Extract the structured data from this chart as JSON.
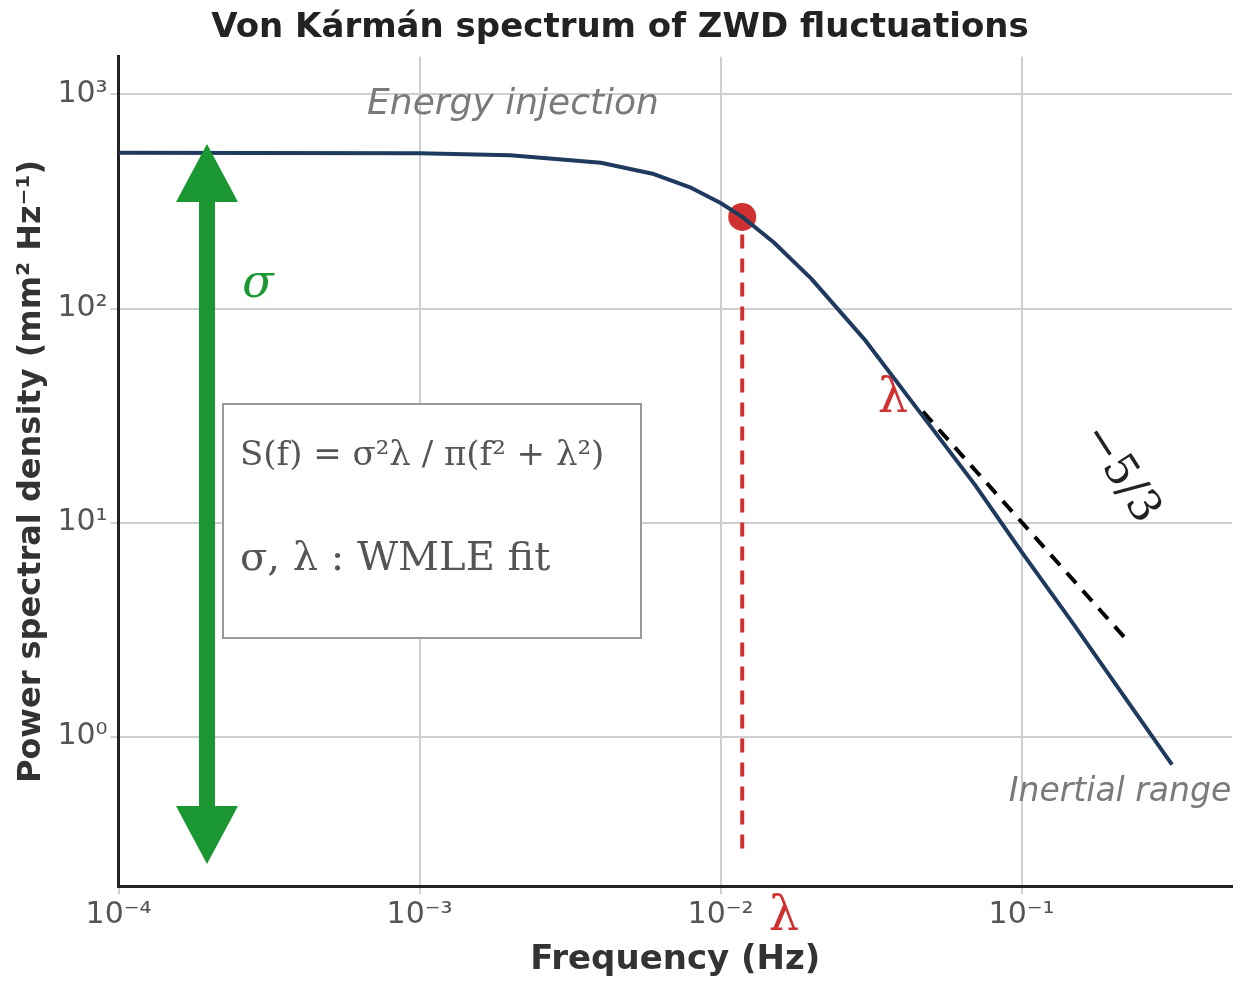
{
  "chart_data": {
    "type": "line",
    "title": "Von Kármán spectrum of ZWD fluctuations",
    "xlabel": "Frequency (Hz)",
    "ylabel": "Power spectral density (mm² Hz⁻¹)",
    "log": "xy",
    "grid": true,
    "legend": false,
    "xlim": [
      0.0001,
      0.5
    ],
    "xticks": [
      {
        "value": 0.0001,
        "label": "10⁻⁴"
      },
      {
        "value": 0.001,
        "label": "10⁻³"
      },
      {
        "value": 0.01,
        "label": "10⁻²"
      },
      {
        "value": 0.1,
        "label": "10⁻¹"
      }
    ],
    "ylim": [
      0.2,
      1500
    ],
    "yticks": [
      {
        "value": 1,
        "label": "10⁰"
      },
      {
        "value": 10,
        "label": "10¹"
      },
      {
        "value": 100,
        "label": "10²"
      },
      {
        "value": 1000,
        "label": "10³"
      }
    ],
    "series": [
      {
        "type": "line",
        "color": "#1f3a5f",
        "marker": "none",
        "line_style": "solid",
        "x": [
          0.0001,
          0.001,
          0.002,
          0.004,
          0.006,
          0.008,
          0.01,
          0.0118,
          0.015,
          0.02,
          0.03,
          0.05,
          0.07,
          0.1,
          0.15,
          0.2,
          0.316
        ],
        "values": [
          535,
          531,
          520,
          480,
          425,
          366,
          311,
          268,
          204,
          138,
          72,
          28,
          15,
          7.3,
          3.3,
          1.85,
          0.74
        ]
      },
      {
        "type": "line",
        "color": "#000000",
        "marker": "none",
        "line_style": "dashed",
        "x": [
          0.047,
          0.22
        ],
        "values": [
          33,
          2.9
        ]
      },
      {
        "type": "line",
        "color": "#d03030",
        "marker": "none",
        "line_style": "dashed",
        "x": [
          0.0118,
          0.0118
        ],
        "values": [
          0.3,
          268
        ]
      },
      {
        "type": "scatter",
        "color": "#d03030",
        "marker": "circle",
        "x": [
          0.0118
        ],
        "values": [
          268
        ]
      }
    ],
    "annotations": [
      "Energy injection",
      "Inertial range",
      "σ",
      "λ",
      "λ",
      "−5/3",
      "S(f) = σ²λ / π(f² + λ²)",
      "σ, λ : WMLE fit"
    ]
  }
}
